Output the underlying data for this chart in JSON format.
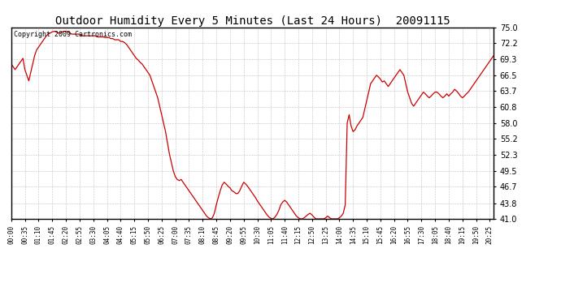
{
  "title": "Outdoor Humidity Every 5 Minutes (Last 24 Hours)  20091115",
  "copyright": "Copyright 2009 Cartronics.com",
  "background_color": "#ffffff",
  "line_color": "#cc0000",
  "grid_color": "#bbbbbb",
  "ylim": [
    41.0,
    75.0
  ],
  "yticks": [
    41.0,
    43.8,
    46.7,
    49.5,
    52.3,
    55.2,
    58.0,
    60.8,
    63.7,
    66.5,
    69.3,
    72.2,
    75.0
  ],
  "humidity_values": [
    68.5,
    68.0,
    67.5,
    68.0,
    68.5,
    69.0,
    69.5,
    67.5,
    66.5,
    65.5,
    67.0,
    68.5,
    70.0,
    71.0,
    71.5,
    72.0,
    72.5,
    73.0,
    73.5,
    73.8,
    74.0,
    74.2,
    74.3,
    74.2,
    74.0,
    74.0,
    74.2,
    74.3,
    74.3,
    74.2,
    74.0,
    73.8,
    73.8,
    73.8,
    73.8,
    73.8,
    73.5,
    73.5,
    73.5,
    73.5,
    73.5,
    73.5,
    73.5,
    73.5,
    73.3,
    73.3,
    73.3,
    73.3,
    73.2,
    73.2,
    73.2,
    73.0,
    73.0,
    72.8,
    72.8,
    72.8,
    72.5,
    72.5,
    72.3,
    72.0,
    71.5,
    71.0,
    70.5,
    70.0,
    69.5,
    69.2,
    68.8,
    68.5,
    68.0,
    67.5,
    67.0,
    66.5,
    65.5,
    64.5,
    63.5,
    62.5,
    61.0,
    59.5,
    58.0,
    56.5,
    54.5,
    52.5,
    51.0,
    49.5,
    48.5,
    48.0,
    47.8,
    48.0,
    47.5,
    47.0,
    46.5,
    46.0,
    45.5,
    45.0,
    44.5,
    44.0,
    43.5,
    43.0,
    42.5,
    42.0,
    41.5,
    41.2,
    41.0,
    41.2,
    42.0,
    43.5,
    44.8,
    46.0,
    47.0,
    47.5,
    47.2,
    46.8,
    46.5,
    46.0,
    45.8,
    45.5,
    45.5,
    46.0,
    46.8,
    47.5,
    47.2,
    46.8,
    46.3,
    45.8,
    45.3,
    44.8,
    44.2,
    43.7,
    43.2,
    42.7,
    42.2,
    41.7,
    41.3,
    41.1,
    41.0,
    41.3,
    41.8,
    42.5,
    43.5,
    44.0,
    44.3,
    44.0,
    43.5,
    43.0,
    42.5,
    42.0,
    41.5,
    41.2,
    41.0,
    41.0,
    41.2,
    41.5,
    41.8,
    42.0,
    41.7,
    41.3,
    41.0,
    41.0,
    41.0,
    41.0,
    41.0,
    41.2,
    41.5,
    41.2,
    41.0,
    41.0,
    41.0,
    41.0,
    41.2,
    41.5,
    42.0,
    43.5,
    58.0,
    59.5,
    57.5,
    56.5,
    56.8,
    57.5,
    58.0,
    58.5,
    59.0,
    60.5,
    62.0,
    63.5,
    65.0,
    65.5,
    66.0,
    66.5,
    66.2,
    65.8,
    65.3,
    65.5,
    65.0,
    64.5,
    65.0,
    65.5,
    66.0,
    66.5,
    67.0,
    67.5,
    67.0,
    66.5,
    65.0,
    63.5,
    62.5,
    61.5,
    61.0,
    61.5,
    62.0,
    62.5,
    63.0,
    63.5,
    63.2,
    62.8,
    62.5,
    62.8,
    63.2,
    63.5,
    63.5,
    63.2,
    62.8,
    62.5,
    62.8,
    63.2,
    62.8,
    63.2,
    63.5,
    64.0,
    63.7,
    63.3,
    62.8,
    62.5,
    62.8,
    63.2,
    63.5,
    64.0,
    64.5,
    65.0,
    65.5,
    66.0,
    66.5,
    67.0,
    67.5,
    68.0,
    68.5,
    69.0,
    69.5,
    70.0
  ],
  "xtick_interval": 7,
  "ytick_fontsize": 7,
  "xtick_fontsize": 5.5,
  "title_fontsize": 10,
  "copyright_fontsize": 6,
  "line_width": 0.9
}
